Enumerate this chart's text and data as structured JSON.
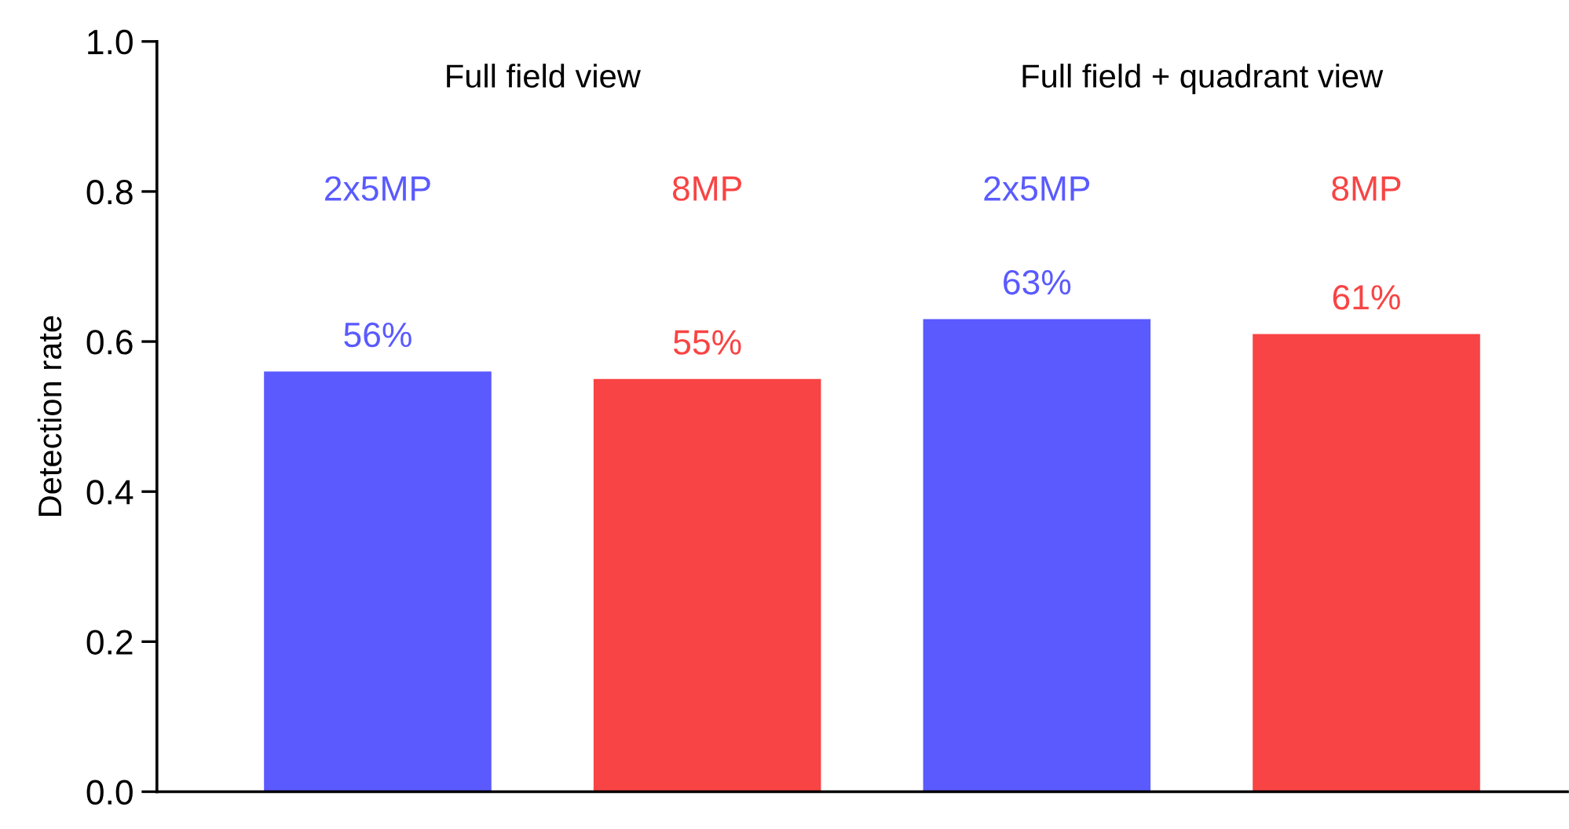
{
  "chart_data": {
    "type": "bar",
    "ylabel": "Detection rate",
    "categories": [
      "2x5MP",
      "8MP",
      "2x5MP",
      "8MP"
    ],
    "values": [
      0.56,
      0.55,
      0.63,
      0.61
    ],
    "value_labels": [
      "56%",
      "55%",
      "63%",
      "61%"
    ],
    "colors": [
      "#5a5aff",
      "#f84444",
      "#5a5aff",
      "#f84444"
    ],
    "annotations": [
      "Full field view",
      "Full field + quadrant view"
    ],
    "ylim": [
      0,
      1.0
    ],
    "yticks": [
      {
        "value": 0,
        "label": "0.0"
      },
      0.2,
      0.4,
      0.6,
      0.8,
      {
        "value": 1.0,
        "label": "1.0"
      }
    ],
    "grid": false,
    "legend": false
  }
}
